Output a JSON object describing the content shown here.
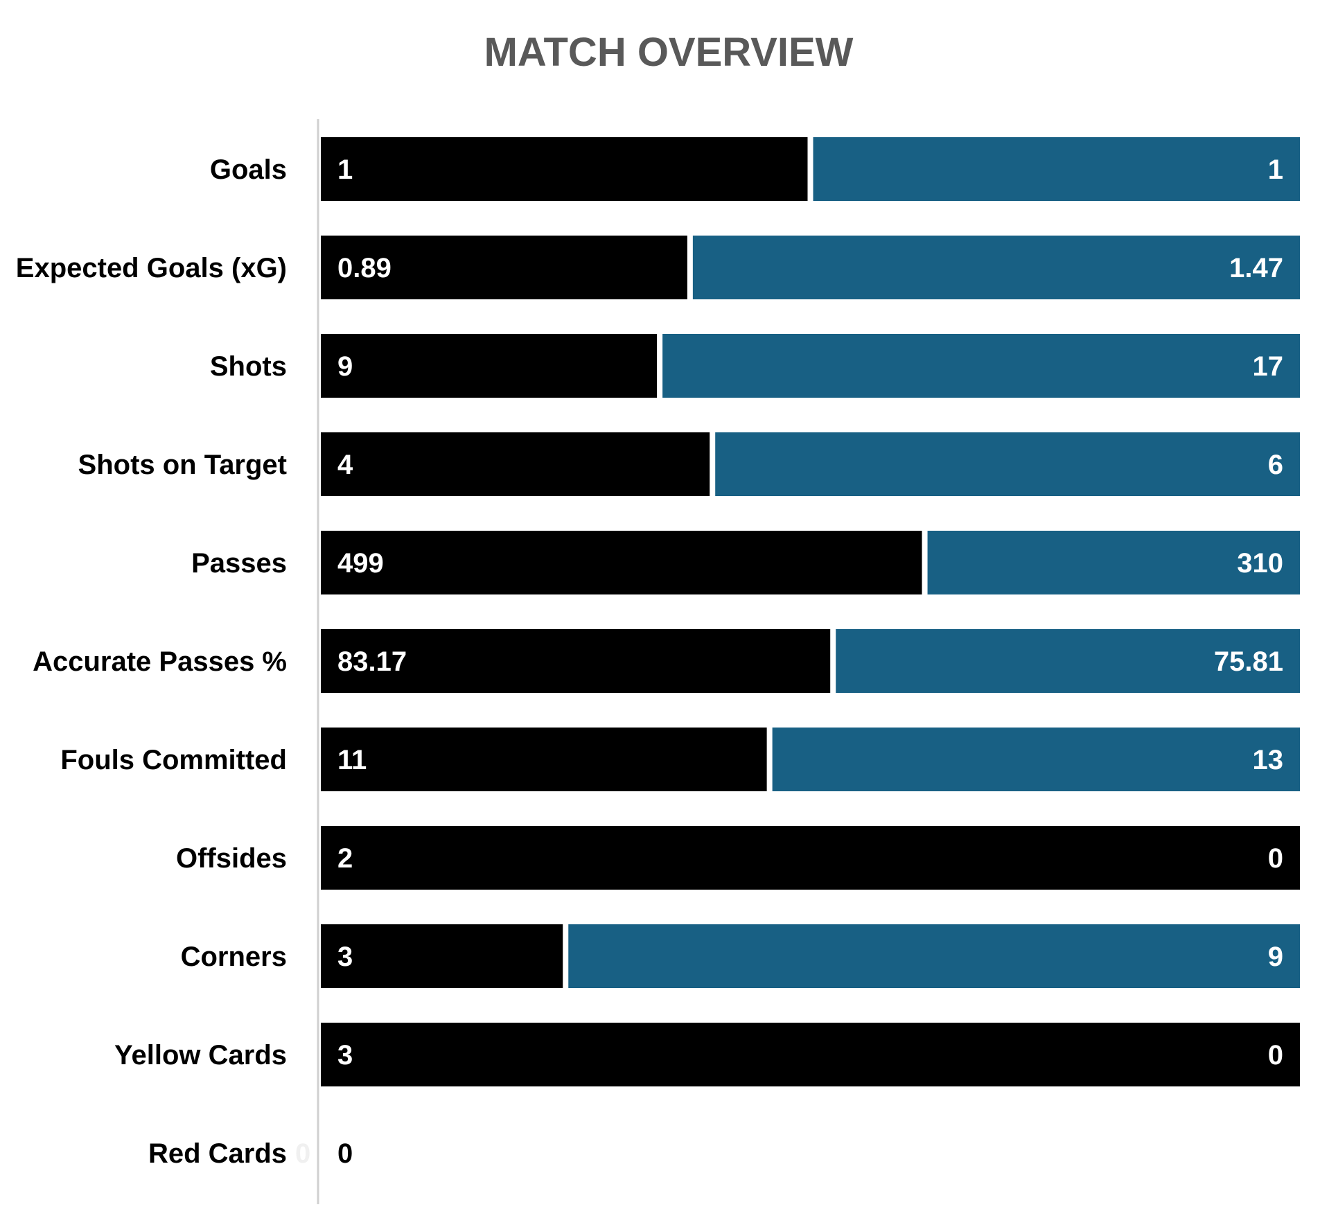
{
  "chart_data": {
    "type": "bar",
    "orientation": "horizontal",
    "stacked": "percent",
    "title": "MATCH OVERVIEW",
    "categories": [
      "Goals",
      "Expected Goals (xG)",
      "Shots",
      "Shots on Target",
      "Passes",
      "Accurate Passes %",
      "Fouls Committed",
      "Offsides",
      "Corners",
      "Yellow Cards",
      "Red Cards"
    ],
    "series": [
      {
        "values": [
          1,
          0.89,
          9,
          4,
          499,
          83.17,
          11,
          2,
          3,
          3,
          0
        ],
        "labels": [
          "1",
          "0.89",
          "9",
          "4",
          "499",
          "83.17",
          "11",
          "2",
          "3",
          "3",
          "0"
        ]
      },
      {
        "values": [
          1,
          1.47,
          17,
          6,
          310,
          75.81,
          13,
          0,
          9,
          0,
          0
        ],
        "labels": [
          "1",
          "1.47",
          "17",
          "6",
          "310",
          "75.81",
          "13",
          "0",
          "9",
          "0",
          "0"
        ]
      }
    ],
    "colors": {
      "left": "#000000",
      "right": "#186084",
      "title": "#595959",
      "label": "#000000",
      "value_text": "#ffffff",
      "empty_value_text": "#000000",
      "axis": "#d0d0d0"
    },
    "grid": false,
    "legend": "none"
  }
}
